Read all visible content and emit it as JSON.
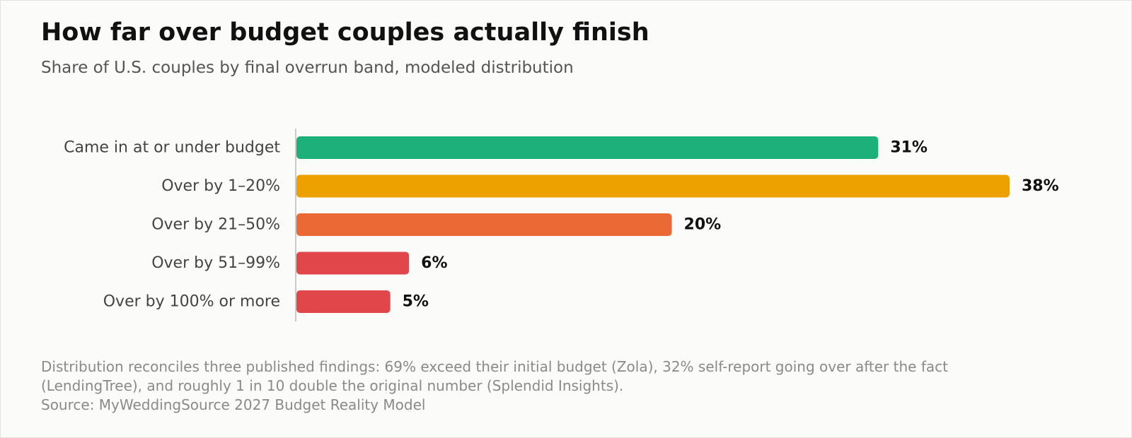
{
  "header": {
    "title": "How far over budget couples actually finish",
    "subtitle": "Share of U.S. couples by final overrun band, modeled distribution"
  },
  "chart_data": {
    "type": "bar",
    "orientation": "horizontal",
    "categories": [
      "Came in at or under budget",
      "Over by 1–20%",
      "Over by 21–50%",
      "Over by 51–99%",
      "Over by 100% or more"
    ],
    "values": [
      31,
      38,
      20,
      6,
      5
    ],
    "value_labels": [
      "31%",
      "38%",
      "20%",
      "6%",
      "5%"
    ],
    "colors": [
      "#1db07b",
      "#eca100",
      "#ea6935",
      "#e1474a",
      "#e1474a"
    ],
    "unit": "%",
    "xlim": [
      0,
      40
    ],
    "grid": false
  },
  "footer": {
    "note": "Distribution reconciles three published findings: 69% exceed their initial budget (Zola), 32% self-report going over after the fact (LendingTree), and roughly 1 in 10 double the original number (Splendid Insights).",
    "source": "Source: MyWeddingSource 2027 Budget Reality Model"
  }
}
